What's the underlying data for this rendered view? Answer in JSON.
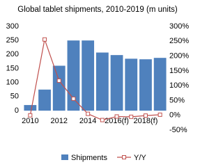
{
  "chart_data": {
    "type": "bar+line",
    "title": "Global tablet shipments, 2010-2019 (m units)",
    "categories": [
      "2010",
      null,
      "2012",
      null,
      "2014",
      null,
      "2016(f)",
      null,
      "2018(f)",
      null
    ],
    "series": [
      {
        "name": "Shipments",
        "type": "bar",
        "color": "#4f81bd",
        "values": [
          20,
          75,
          160,
          250,
          250,
          207,
          198,
          185,
          183,
          188
        ]
      },
      {
        "name": "Y/Y",
        "type": "line",
        "axis": "y2",
        "color": "#c0504d",
        "values": [
          0,
          256,
          117,
          56,
          5,
          -16,
          -4,
          -5,
          -1,
          2
        ]
      }
    ],
    "ylim": [
      0,
      300
    ],
    "yticks": [
      0,
      50,
      100,
      150,
      200,
      250,
      300
    ],
    "y2lim": [
      -50,
      300
    ],
    "y2ticks": [
      {
        "value": -50,
        "label": "-50%"
      },
      {
        "value": 0,
        "label": "0%"
      },
      {
        "value": 50,
        "label": "50%"
      },
      {
        "value": 100,
        "label": "100%"
      },
      {
        "value": 150,
        "label": "150%"
      },
      {
        "value": 200,
        "label": "200%"
      },
      {
        "value": 250,
        "label": "250%"
      },
      {
        "value": 300,
        "label": "300%"
      }
    ],
    "legend": "bottom"
  }
}
